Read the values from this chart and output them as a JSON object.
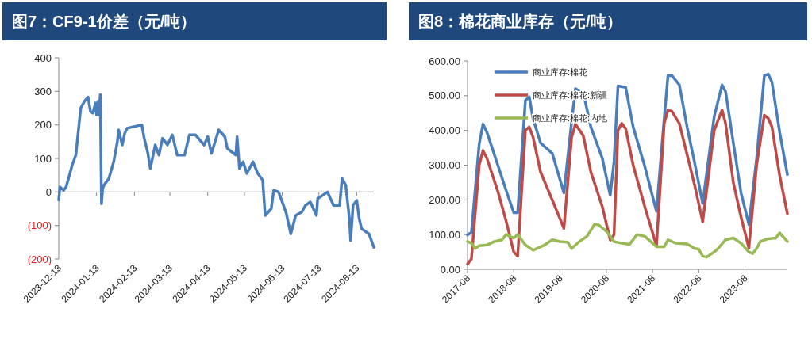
{
  "chart_data": [
    {
      "type": "line",
      "title": "图7：CF9-1价差（元/吨）",
      "xlim": [
        "2023-12-13",
        "2024-08-27"
      ],
      "xticks": [
        "2023-12-13",
        "2024-01-13",
        "2024-02-13",
        "2024-03-13",
        "2024-04-13",
        "2024-05-13",
        "2024-06-13",
        "2024-07-13",
        "2024-08-13"
      ],
      "ylim": [
        -200,
        400
      ],
      "yticks": [
        400,
        300,
        200,
        100,
        0,
        {
          "value": -100,
          "label": "(100)"
        },
        {
          "value": -200,
          "label": "(200)"
        }
      ],
      "legend": false,
      "series": [
        {
          "color": "#4a7ebb",
          "x": [
            "2023-12-13",
            "2023-12-14",
            "2023-12-17",
            "2023-12-19",
            "2023-12-21",
            "2023-12-24",
            "2023-12-27",
            "2023-12-29",
            "2023-12-31",
            "2024-01-03",
            "2024-01-06",
            "2024-01-08",
            "2024-01-10",
            "2024-01-12",
            "2024-01-13",
            "2024-01-14",
            "2024-01-15",
            "2024-01-16",
            "2024-01-17",
            "2024-01-18",
            "2024-01-19",
            "2024-01-23",
            "2024-01-25",
            "2024-01-27",
            "2024-01-30",
            "2024-01-31",
            "2024-02-03",
            "2024-02-05",
            "2024-02-07",
            "2024-02-19",
            "2024-02-21",
            "2024-02-24",
            "2024-02-26",
            "2024-03-01",
            "2024-03-04",
            "2024-03-07",
            "2024-03-11",
            "2024-03-15",
            "2024-03-19",
            "2024-03-25",
            "2024-03-29",
            "2024-04-03",
            "2024-04-10",
            "2024-04-13",
            "2024-04-16",
            "2024-04-22",
            "2024-04-27",
            "2024-04-29",
            "2024-05-06",
            "2024-05-07",
            "2024-05-09",
            "2024-05-12",
            "2024-05-15",
            "2024-05-20",
            "2024-05-24",
            "2024-05-28",
            "2024-05-30",
            "2024-06-04",
            "2024-06-06",
            "2024-06-10",
            "2024-06-12",
            "2024-06-16",
            "2024-06-20",
            "2024-06-24",
            "2024-06-29",
            "2024-07-02",
            "2024-07-06",
            "2024-07-11",
            "2024-07-12",
            "2024-07-16",
            "2024-07-20",
            "2024-07-25",
            "2024-07-30",
            "2024-08-01",
            "2024-08-04",
            "2024-08-07",
            "2024-08-08",
            "2024-08-10",
            "2024-08-13",
            "2024-08-15",
            "2024-08-17",
            "2024-08-23",
            "2024-08-27"
          ],
          "values": [
            -24,
            15,
            5,
            15,
            40,
            80,
            110,
            180,
            250,
            270,
            283,
            240,
            235,
            265,
            230,
            270,
            230,
            290,
            -35,
            10,
            20,
            40,
            65,
            90,
            150,
            185,
            140,
            175,
            190,
            200,
            160,
            115,
            70,
            140,
            110,
            160,
            140,
            170,
            110,
            110,
            170,
            170,
            140,
            165,
            115,
            185,
            165,
            130,
            110,
            165,
            70,
            90,
            55,
            90,
            55,
            35,
            -70,
            -50,
            5,
            0,
            -20,
            -60,
            -125,
            -70,
            -60,
            -40,
            -30,
            -70,
            -20,
            -10,
            0,
            -40,
            -40,
            40,
            20,
            -80,
            -145,
            -40,
            -25,
            -80,
            -110,
            -125,
            -165
          ]
        }
      ]
    },
    {
      "type": "line",
      "title": "图8：棉花商业库存（元/吨）",
      "xlim": [
        "2017-08",
        "2024-07"
      ],
      "xticks": [
        "2017-08",
        "2018-08",
        "2019-08",
        "2020-08",
        "2021-08",
        "2022-08",
        "2023-08"
      ],
      "ylim": [
        0,
        600
      ],
      "yticks": [
        {
          "value": 0,
          "label": "0.00"
        },
        {
          "value": 100,
          "label": "100.00"
        },
        {
          "value": 200,
          "label": "200.00"
        },
        {
          "value": 300,
          "label": "300.00"
        },
        {
          "value": 400,
          "label": "400.00"
        },
        {
          "value": 500,
          "label": "500.00"
        },
        {
          "value": 600,
          "label": "600.00"
        }
      ],
      "legend": "top left",
      "series": [
        {
          "name": "商业库存:棉花",
          "color": "#4a7ebb",
          "x": [
            "2017-08",
            "2017-09",
            "2017-11",
            "2017-12",
            "2018-01",
            "2018-04",
            "2018-06",
            "2018-08",
            "2018-09",
            "2018-11",
            "2018-12",
            "2019-01",
            "2019-03",
            "2019-06",
            "2019-09",
            "2019-11",
            "2019-12",
            "2020-02",
            "2020-04",
            "2020-07",
            "2020-09",
            "2020-10",
            "2020-11",
            "2021-01",
            "2021-03",
            "2021-06",
            "2021-09",
            "2021-11",
            "2021-12",
            "2022-01",
            "2022-03",
            "2022-05",
            "2022-07",
            "2022-09",
            "2022-12",
            "2023-02",
            "2023-03",
            "2023-05",
            "2023-07",
            "2023-09",
            "2023-11",
            "2024-01",
            "2024-02",
            "2024-03",
            "2024-05",
            "2024-07"
          ],
          "values": [
            99,
            106,
            360,
            418,
            395,
            296,
            228,
            163,
            163,
            486,
            497,
            433,
            364,
            334,
            220,
            425,
            520,
            509,
            410,
            319,
            213,
            311,
            528,
            524,
            410,
            296,
            167,
            433,
            558,
            558,
            531,
            410,
            304,
            190,
            440,
            531,
            512,
            364,
            220,
            129,
            319,
            558,
            562,
            539,
            395,
            273
          ]
        },
        {
          "name": "商业库存:棉花:新疆",
          "color": "#be4b48",
          "x": [
            "2017-08",
            "2017-09",
            "2017-11",
            "2017-12",
            "2018-01",
            "2018-04",
            "2018-06",
            "2018-08",
            "2018-09",
            "2018-11",
            "2018-12",
            "2019-01",
            "2019-03",
            "2019-06",
            "2019-09",
            "2019-11",
            "2019-12",
            "2020-02",
            "2020-04",
            "2020-07",
            "2020-09",
            "2020-10",
            "2020-11",
            "2020-12",
            "2021-01",
            "2021-03",
            "2021-06",
            "2021-09",
            "2021-11",
            "2021-12",
            "2022-01",
            "2022-03",
            "2022-05",
            "2022-07",
            "2022-09",
            "2022-12",
            "2023-02",
            "2023-03",
            "2023-05",
            "2023-07",
            "2023-09",
            "2023-11",
            "2024-01",
            "2024-02",
            "2024-03",
            "2024-05",
            "2024-07"
          ],
          "values": [
            15,
            30,
            300,
            342,
            320,
            220,
            140,
            50,
            38,
            400,
            410,
            380,
            280,
            200,
            118,
            380,
            418,
            385,
            280,
            180,
            84,
            100,
            400,
            420,
            405,
            300,
            180,
            68,
            420,
            459,
            455,
            420,
            330,
            240,
            137,
            400,
            459,
            420,
            250,
            150,
            61,
            300,
            444,
            435,
            410,
            270,
            160
          ]
        },
        {
          "name": "商业库存:棉花:内地",
          "color": "#98b954",
          "x": [
            "2017-08",
            "2017-09",
            "2017-10",
            "2017-11",
            "2018-01",
            "2018-03",
            "2018-05",
            "2018-06",
            "2018-08",
            "2018-09",
            "2018-11",
            "2019-01",
            "2019-04",
            "2019-06",
            "2019-08",
            "2019-10",
            "2019-11",
            "2020-01",
            "2020-03",
            "2020-05",
            "2020-06",
            "2020-08",
            "2020-10",
            "2020-12",
            "2021-02",
            "2021-04",
            "2021-06",
            "2021-09",
            "2021-11",
            "2021-12",
            "2022-02",
            "2022-05",
            "2022-07",
            "2022-08",
            "2022-09",
            "2022-10",
            "2022-12",
            "2023-01",
            "2023-03",
            "2023-05",
            "2023-07",
            "2023-09",
            "2023-10",
            "2023-11",
            "2023-12",
            "2024-02",
            "2024-04",
            "2024-05",
            "2024-07"
          ],
          "values": [
            80,
            75,
            60,
            68,
            70,
            80,
            85,
            100,
            90,
            100,
            70,
            55,
            70,
            85,
            80,
            78,
            60,
            80,
            95,
            130,
            128,
            110,
            80,
            75,
            72,
            100,
            95,
            65,
            65,
            85,
            75,
            73,
            60,
            58,
            38,
            35,
            50,
            60,
            85,
            90,
            75,
            50,
            45,
            60,
            80,
            88,
            90,
            105,
            80
          ]
        }
      ]
    }
  ]
}
